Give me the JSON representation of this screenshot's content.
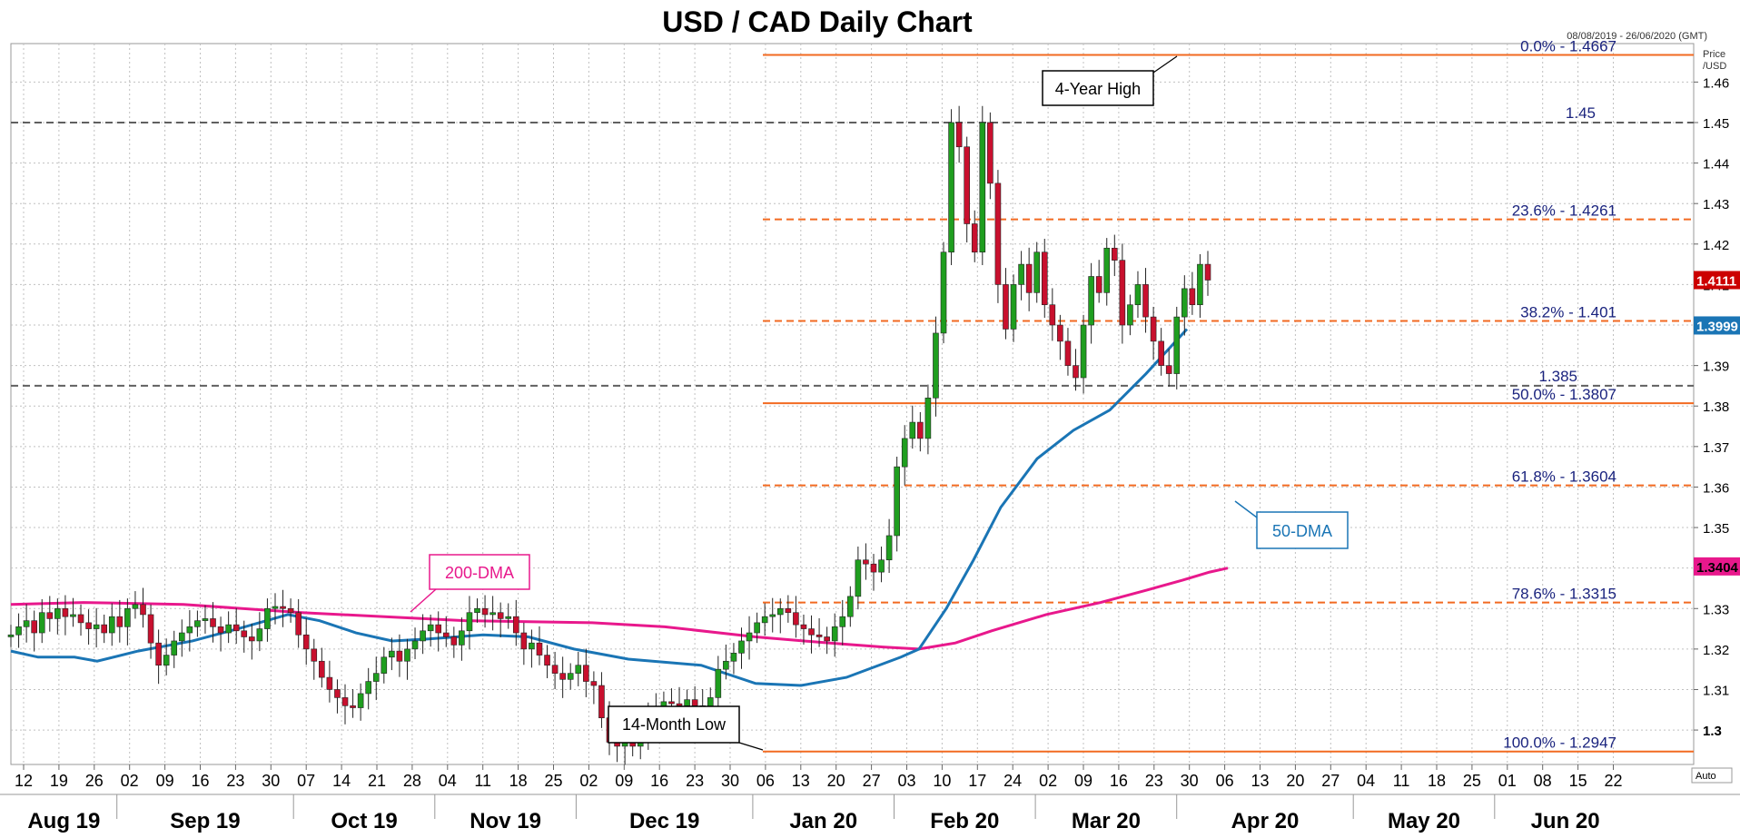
{
  "chart_data": {
    "type": "candlestick",
    "title": "USD / CAD Daily Chart",
    "date_range": "08/08/2019 - 26/06/2020 (GMT)",
    "price_axis_label": [
      "Price",
      "/USD"
    ],
    "auto_label": "Auto",
    "ylim": [
      1.2915,
      1.4695
    ],
    "y_ticks": [
      1.3,
      1.31,
      1.32,
      1.33,
      1.34,
      1.35,
      1.36,
      1.37,
      1.38,
      1.39,
      1.4,
      1.41,
      1.42,
      1.43,
      1.44,
      1.45,
      1.46
    ],
    "y_tick_labels": [
      "1.3",
      "1.31",
      "1.32",
      "1.33",
      "1.34",
      "1.35",
      "1.36",
      "1.37",
      "1.38",
      "1.39",
      "1.4",
      "1.41",
      "1.42",
      "1.43",
      "1.44",
      "1.45",
      "1.46"
    ],
    "x_day_ticks": [
      "12",
      "19",
      "26",
      "02",
      "09",
      "16",
      "23",
      "30",
      "07",
      "14",
      "21",
      "28",
      "04",
      "11",
      "18",
      "25",
      "02",
      "09",
      "16",
      "23",
      "30",
      "06",
      "13",
      "20",
      "27",
      "03",
      "10",
      "17",
      "24",
      "02",
      "09",
      "16",
      "23",
      "30",
      "06",
      "13",
      "20",
      "27",
      "04",
      "11",
      "18",
      "25",
      "01",
      "08",
      "15",
      "22"
    ],
    "x_month_labels": [
      "Aug 19",
      "Sep 19",
      "Oct 19",
      "Nov 19",
      "Dec 19",
      "Jan 20",
      "Feb 20",
      "Mar 20",
      "Apr 20",
      "May 20",
      "Jun 20"
    ],
    "candles": [
      1.3235,
      1.3255,
      1.327,
      1.324,
      1.329,
      1.3275,
      1.33,
      1.328,
      1.3285,
      1.3265,
      1.325,
      1.326,
      1.324,
      1.328,
      1.3255,
      1.33,
      1.331,
      1.3285,
      1.3215,
      1.316,
      1.3185,
      1.322,
      1.324,
      1.3255,
      1.327,
      1.3275,
      1.3255,
      1.324,
      1.326,
      1.3245,
      1.323,
      1.322,
      1.325,
      1.33,
      1.3305,
      1.33,
      1.329,
      1.3235,
      1.32,
      1.317,
      1.313,
      1.31,
      1.308,
      1.306,
      1.3055,
      1.309,
      1.312,
      1.314,
      1.318,
      1.3195,
      1.317,
      1.32,
      1.322,
      1.3245,
      1.326,
      1.324,
      1.323,
      1.321,
      1.3245,
      1.329,
      1.33,
      1.3285,
      1.329,
      1.3275,
      1.328,
      1.324,
      1.32,
      1.3215,
      1.3185,
      1.316,
      1.314,
      1.3125,
      1.314,
      1.316,
      1.312,
      1.311,
      1.303,
      1.297,
      1.296,
      1.2975,
      1.296,
      1.299,
      1.3035,
      1.305,
      1.307,
      1.3065,
      1.306,
      1.3075,
      1.306,
      1.305,
      1.308,
      1.315,
      1.317,
      1.319,
      1.322,
      1.324,
      1.3265,
      1.328,
      1.3285,
      1.33,
      1.329,
      1.326,
      1.325,
      1.3235,
      1.323,
      1.322,
      1.3255,
      1.328,
      1.333,
      1.342,
      1.341,
      1.339,
      1.342,
      1.348,
      1.365,
      1.372,
      1.376,
      1.372,
      1.382,
      1.398,
      1.418,
      1.45,
      1.444,
      1.425,
      1.418,
      1.45,
      1.435,
      1.41,
      1.399,
      1.41,
      1.415,
      1.408,
      1.418,
      1.405,
      1.4,
      1.396,
      1.39,
      1.387,
      1.4,
      1.412,
      1.408,
      1.419,
      1.416,
      1.4,
      1.405,
      1.41,
      1.402,
      1.396,
      1.39,
      1.388,
      1.402,
      1.409,
      1.405,
      1.415,
      1.4111
    ],
    "moving_averages": [
      {
        "name": "200-DMA",
        "color": "#e8188c",
        "points": [
          [
            0,
            1.331
          ],
          [
            80,
            1.3315
          ],
          [
            190,
            1.331
          ],
          [
            320,
            1.329
          ],
          [
            500,
            1.327
          ],
          [
            640,
            1.3265
          ],
          [
            720,
            1.3255
          ],
          [
            820,
            1.323
          ],
          [
            900,
            1.3215
          ],
          [
            960,
            1.3205
          ],
          [
            1000,
            1.32
          ],
          [
            1040,
            1.3215
          ],
          [
            1080,
            1.3245
          ],
          [
            1140,
            1.3285
          ],
          [
            1200,
            1.3315
          ],
          [
            1250,
            1.3345
          ],
          [
            1290,
            1.337
          ],
          [
            1320,
            1.339
          ],
          [
            1340,
            1.34
          ]
        ]
      },
      {
        "name": "50-DMA",
        "color": "#1a75b5",
        "points": [
          [
            0,
            1.3195
          ],
          [
            30,
            1.318
          ],
          [
            70,
            1.318
          ],
          [
            95,
            1.317
          ],
          [
            140,
            1.3195
          ],
          [
            200,
            1.322
          ],
          [
            250,
            1.325
          ],
          [
            305,
            1.3285
          ],
          [
            340,
            1.327
          ],
          [
            380,
            1.324
          ],
          [
            420,
            1.322
          ],
          [
            460,
            1.3225
          ],
          [
            520,
            1.3235
          ],
          [
            570,
            1.323
          ],
          [
            620,
            1.32
          ],
          [
            680,
            1.3175
          ],
          [
            760,
            1.316
          ],
          [
            820,
            1.3115
          ],
          [
            870,
            1.311
          ],
          [
            920,
            1.313
          ],
          [
            980,
            1.318
          ],
          [
            1000,
            1.32
          ],
          [
            1030,
            1.33
          ],
          [
            1060,
            1.342
          ],
          [
            1090,
            1.355
          ],
          [
            1130,
            1.367
          ],
          [
            1170,
            1.374
          ],
          [
            1210,
            1.379
          ],
          [
            1250,
            1.388
          ],
          [
            1295,
            1.399
          ]
        ]
      }
    ],
    "last_price": {
      "value": 1.4111,
      "label": "1.4111",
      "color": "#cc0000"
    },
    "dma50_value": {
      "value": 1.3999,
      "label": "1.3999",
      "color": "#1a75b5"
    },
    "dma200_value": {
      "value": 1.3404,
      "label": "1.3404",
      "color": "#e8188c"
    },
    "fib_levels": [
      {
        "price": 1.4667,
        "label": "0.0% - 1.4667",
        "style": "solid"
      },
      {
        "price": 1.4261,
        "label": "23.6% - 1.4261",
        "style": "dashed"
      },
      {
        "price": 1.401,
        "label": "38.2% - 1.401",
        "style": "dashed"
      },
      {
        "price": 1.3807,
        "label": "50.0% - 1.3807",
        "style": "solid"
      },
      {
        "price": 1.3604,
        "label": "61.8% - 1.3604",
        "style": "dashed"
      },
      {
        "price": 1.3315,
        "label": "78.6% - 1.3315",
        "style": "dashed"
      },
      {
        "price": 1.2947,
        "label": "100.0% - 1.2947",
        "style": "solid"
      }
    ],
    "horizontal_levels": [
      {
        "price": 1.45,
        "label": "1.45"
      },
      {
        "price": 1.385,
        "label": "1.385"
      }
    ],
    "annotations": [
      {
        "text": "4-Year High",
        "color": "#000000"
      },
      {
        "text": "14-Month Low",
        "color": "#000000"
      },
      {
        "text": "200-DMA",
        "color": "#e8188c"
      },
      {
        "text": "50-DMA",
        "color": "#1a75b5"
      }
    ],
    "colors": {
      "up": "#1f9e1f",
      "down": "#c8102e",
      "fib": "#f26a21",
      "level": "#606060",
      "grid": "#c0c0c0"
    }
  }
}
